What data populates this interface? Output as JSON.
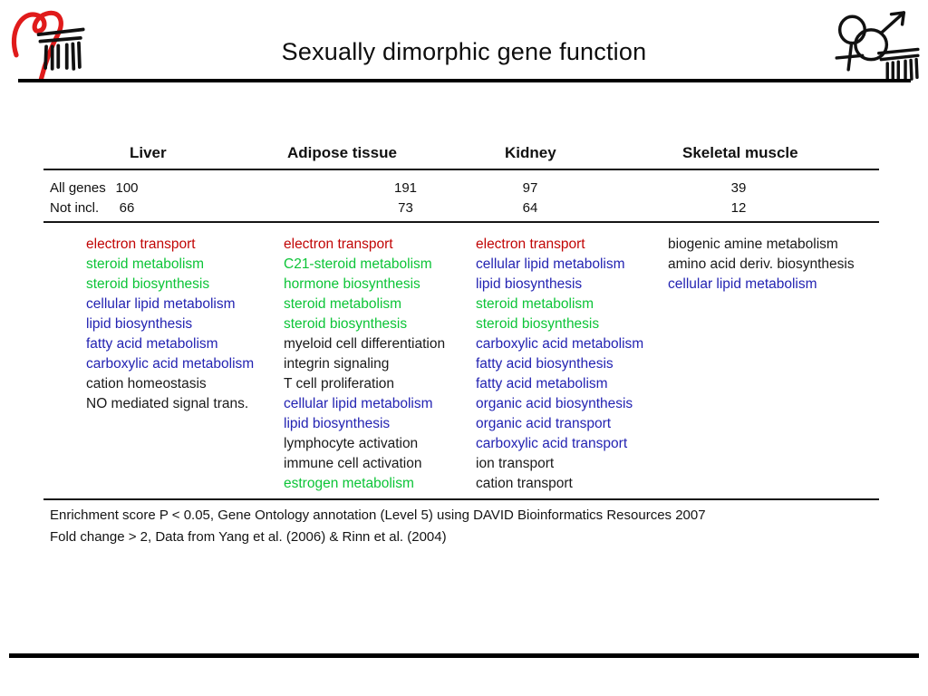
{
  "title": "Sexually dimorphic gene function",
  "logos": {
    "left": "heart-institute-logo",
    "right": "gender-symbols-logo"
  },
  "colors": {
    "red": "#c10505",
    "green": "#0cc437",
    "blue": "#2323b2",
    "black": "#1a1a1a",
    "logo_red": "#e01b1b",
    "logo_black": "#111111"
  },
  "table": {
    "tissues": [
      "Liver",
      "Adipose tissue",
      "Kidney",
      "Skeletal muscle"
    ],
    "count_rows": [
      {
        "label": "All genes",
        "values": [
          "100",
          "191",
          "97",
          "39"
        ]
      },
      {
        "label": "Not incl.",
        "values": [
          "66",
          "73",
          "64",
          "12"
        ]
      }
    ],
    "go_columns": [
      {
        "tissue": "Liver",
        "terms": [
          {
            "text": "electron transport",
            "color": "red"
          },
          {
            "text": "steroid metabolism",
            "color": "green"
          },
          {
            "text": "steroid biosynthesis",
            "color": "green"
          },
          {
            "text": "cellular lipid metabolism",
            "color": "blue"
          },
          {
            "text": "lipid biosynthesis",
            "color": "blue"
          },
          {
            "text": "fatty acid metabolism",
            "color": "blue"
          },
          {
            "text": "carboxylic acid metabolism",
            "color": "blue"
          },
          {
            "text": "cation homeostasis",
            "color": "black"
          },
          {
            "text": "NO mediated signal trans.",
            "color": "black"
          }
        ]
      },
      {
        "tissue": "Adipose tissue",
        "terms": [
          {
            "text": "electron transport",
            "color": "red"
          },
          {
            "text": "C21-steroid metabolism",
            "color": "green"
          },
          {
            "text": "hormone biosynthesis",
            "color": "green"
          },
          {
            "text": "steroid metabolism",
            "color": "green"
          },
          {
            "text": "steroid biosynthesis",
            "color": "green"
          },
          {
            "text": "myeloid cell differentiation",
            "color": "black"
          },
          {
            "text": "integrin signaling",
            "color": "black"
          },
          {
            "text": "T cell proliferation",
            "color": "black"
          },
          {
            "text": "cellular lipid metabolism",
            "color": "blue"
          },
          {
            "text": "lipid biosynthesis",
            "color": "blue"
          },
          {
            "text": "lymphocyte activation",
            "color": "black"
          },
          {
            "text": "immune cell activation",
            "color": "black"
          },
          {
            "text": "estrogen metabolism",
            "color": "green"
          }
        ]
      },
      {
        "tissue": "Kidney",
        "terms": [
          {
            "text": "electron transport",
            "color": "red"
          },
          {
            "text": "cellular lipid metabolism",
            "color": "blue"
          },
          {
            "text": "lipid biosynthesis",
            "color": "blue"
          },
          {
            "text": "steroid metabolism",
            "color": "green"
          },
          {
            "text": "steroid biosynthesis",
            "color": "green"
          },
          {
            "text": "carboxylic acid metabolism",
            "color": "blue"
          },
          {
            "text": "fatty acid biosynthesis",
            "color": "blue"
          },
          {
            "text": "fatty acid metabolism",
            "color": "blue"
          },
          {
            "text": "organic acid biosynthesis",
            "color": "blue"
          },
          {
            "text": "organic acid transport",
            "color": "blue"
          },
          {
            "text": "carboxylic acid transport",
            "color": "blue"
          },
          {
            "text": "ion transport",
            "color": "black"
          },
          {
            "text": "cation transport",
            "color": "black"
          }
        ]
      },
      {
        "tissue": "Skeletal muscle",
        "terms": [
          {
            "text": "biogenic amine metabolism",
            "color": "black"
          },
          {
            "text": "amino acid deriv. biosynthesis",
            "color": "black"
          },
          {
            "text": "cellular lipid metabolism",
            "color": "blue"
          }
        ]
      }
    ]
  },
  "footnote": {
    "line1": "Enrichment score P < 0.05, Gene Ontology annotation (Level 5) using DAVID Bioinformatics Resources 2007",
    "line2": "Fold change > 2, Data from Yang et al. (2006) & Rinn et al. (2004)"
  }
}
